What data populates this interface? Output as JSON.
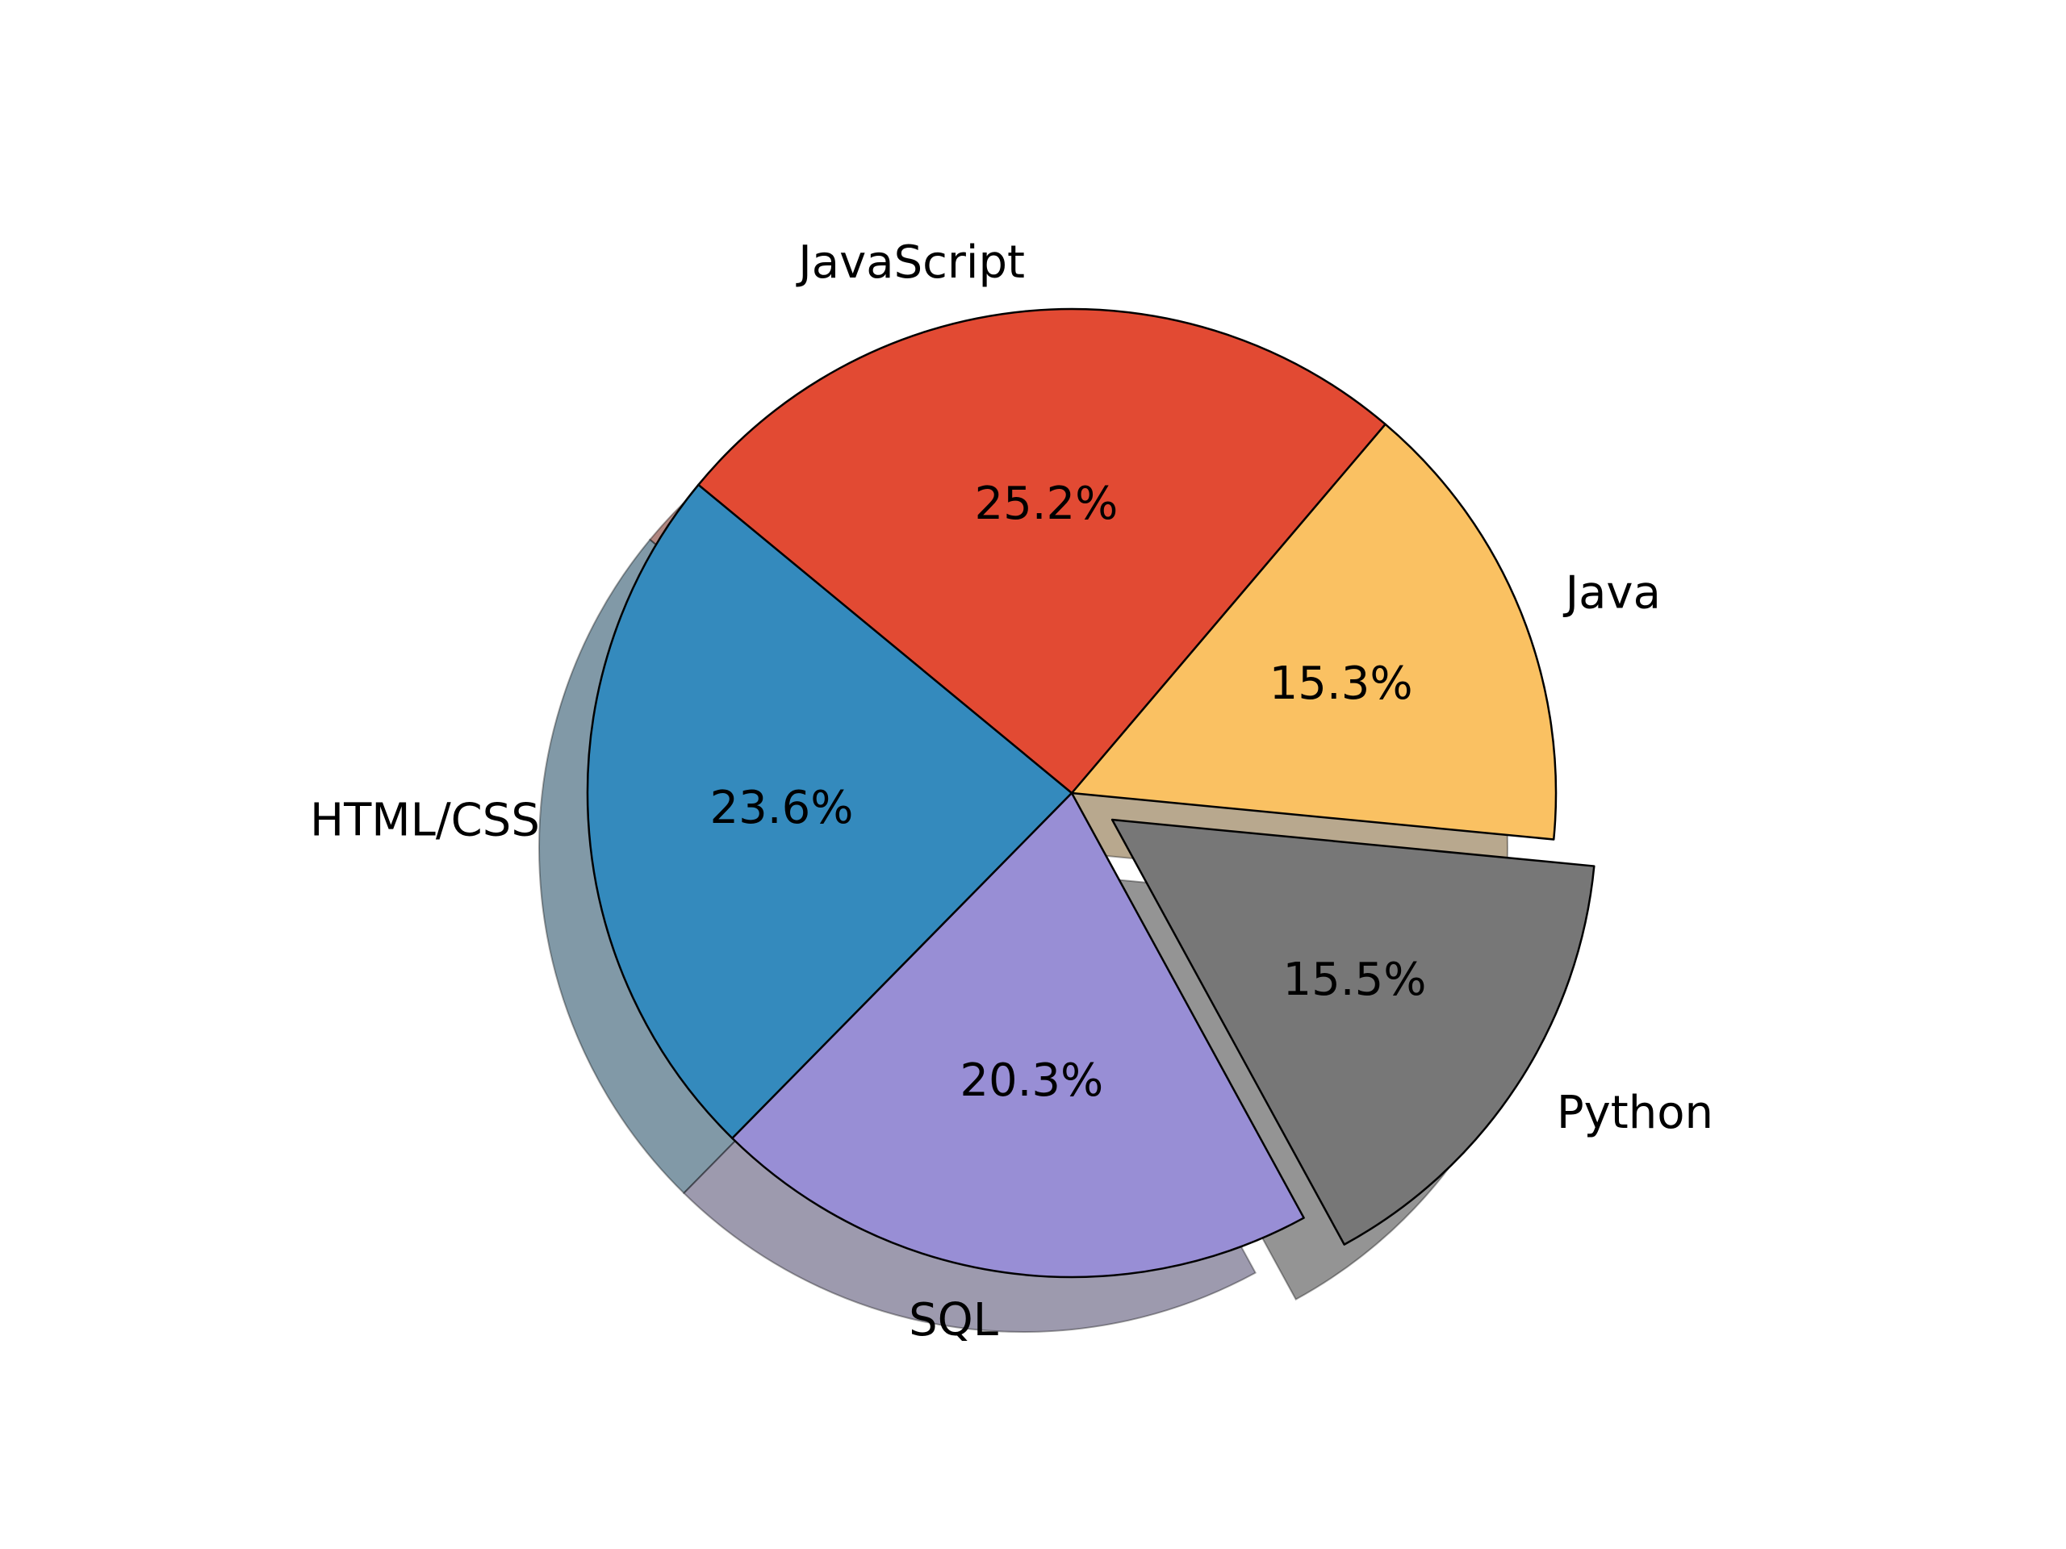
{
  "chart_data": {
    "type": "pie",
    "title": "",
    "slices": [
      {
        "label": "Java",
        "value": 15.3,
        "pct_label": "15.3%",
        "color": "#FAC162",
        "exploded": false
      },
      {
        "label": "JavaScript",
        "value": 25.2,
        "pct_label": "25.2%",
        "color": "#E24A33",
        "exploded": false
      },
      {
        "label": "HTML/CSS",
        "value": 23.6,
        "pct_label": "23.6%",
        "color": "#348ABD",
        "exploded": false
      },
      {
        "label": "SQL",
        "value": 20.3,
        "pct_label": "20.3%",
        "color": "#988ED5",
        "exploded": false
      },
      {
        "label": "Python",
        "value": 15.5,
        "pct_label": "15.5%",
        "color": "#777777",
        "exploded": true
      }
    ],
    "start_angle_deg": -5.5,
    "direction": "counterclockwise",
    "shadow": true,
    "edge_color": "#000000",
    "legend": "none"
  }
}
